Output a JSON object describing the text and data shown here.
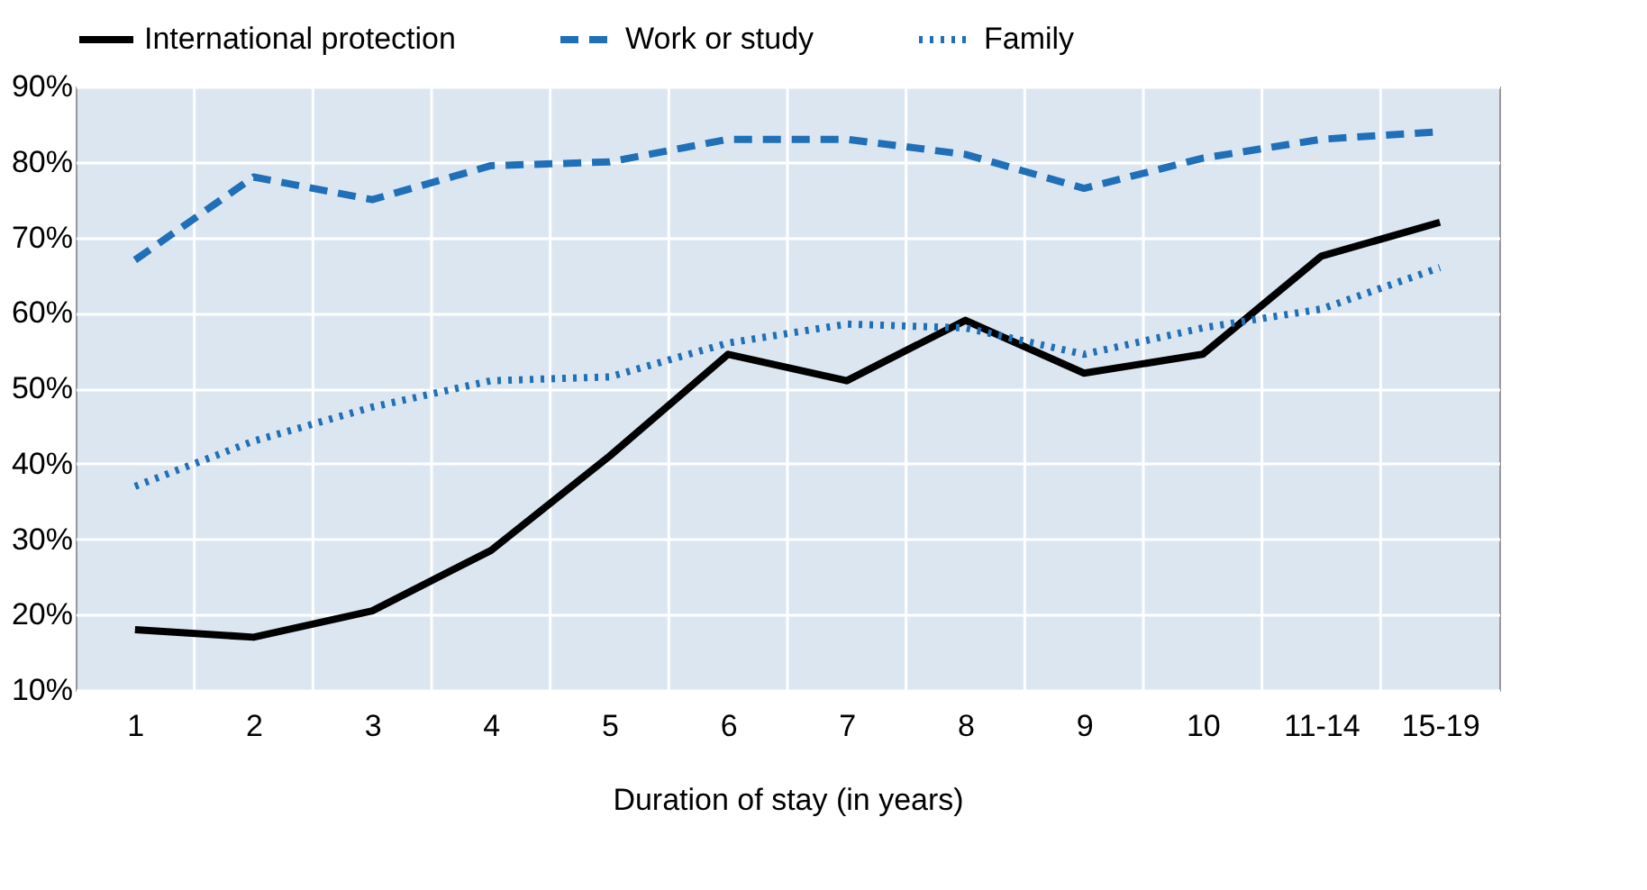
{
  "chart_data": {
    "type": "line",
    "xlabel": "Duration of stay (in years)",
    "categories": [
      "1",
      "2",
      "3",
      "4",
      "5",
      "6",
      "7",
      "8",
      "9",
      "10",
      "11-14",
      "15-19"
    ],
    "series": [
      {
        "name": "International protection",
        "color": "#000000",
        "line_style": "solid",
        "values": [
          18,
          17,
          20.5,
          28.5,
          41,
          54.5,
          51,
          59,
          52,
          54.5,
          67.5,
          72
        ]
      },
      {
        "name": "Work or study",
        "color": "#1f70b8",
        "line_style": "dashed",
        "values": [
          67,
          78,
          75,
          79.5,
          80,
          83,
          83,
          81,
          76.5,
          80.5,
          83,
          84
        ]
      },
      {
        "name": "Family",
        "color": "#1f70b8",
        "line_style": "dotted",
        "values": [
          37,
          43,
          47.5,
          51,
          51.5,
          56,
          58.5,
          58,
          54.5,
          58,
          60.5,
          66
        ]
      }
    ],
    "ylim": [
      10,
      90
    ],
    "yticks": [
      {
        "value": 10,
        "label": "10%"
      },
      {
        "value": 20,
        "label": "20%"
      },
      {
        "value": 30,
        "label": "30%"
      },
      {
        "value": 40,
        "label": "40%"
      },
      {
        "value": 50,
        "label": "50%"
      },
      {
        "value": 60,
        "label": "60%"
      },
      {
        "value": 70,
        "label": "70%"
      },
      {
        "value": 80,
        "label": "80%"
      },
      {
        "value": 90,
        "label": "90%"
      }
    ],
    "grid": true,
    "legend": "top"
  }
}
